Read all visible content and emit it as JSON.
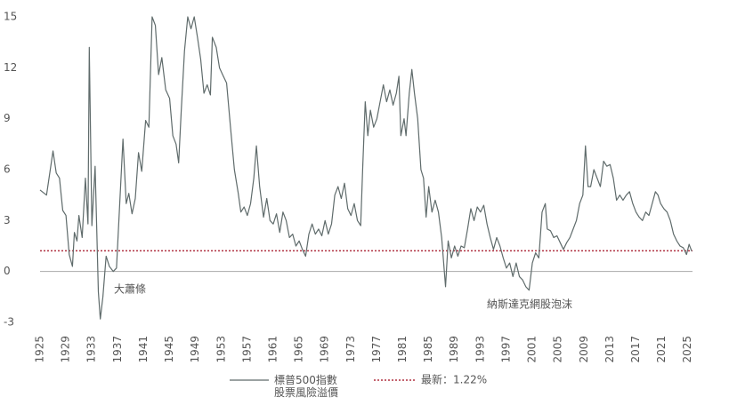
{
  "chart_data": {
    "type": "line",
    "x": [
      1925,
      1926,
      1927,
      1927.5,
      1928,
      1928.5,
      1929,
      1929.5,
      1930,
      1930.3,
      1930.7,
      1931,
      1931.5,
      1932,
      1932.4,
      1932.6,
      1933,
      1933.5,
      1934,
      1934.3,
      1934.7,
      1935.2,
      1935.7,
      1936.3,
      1936.8,
      1937.3,
      1937.8,
      1938.3,
      1938.7,
      1939.2,
      1939.7,
      1940.2,
      1940.7,
      1941.3,
      1941.8,
      1942.3,
      1942.8,
      1943.3,
      1943.8,
      1944.4,
      1945,
      1945.5,
      1946,
      1946.4,
      1946.8,
      1947.3,
      1947.8,
      1948.3,
      1948.8,
      1949.3,
      1949.8,
      1950.3,
      1950.8,
      1951.3,
      1951.6,
      1952.2,
      1952.7,
      1953.3,
      1953.8,
      1954.4,
      1955,
      1955.6,
      1956,
      1956.5,
      1957,
      1957.5,
      1958,
      1958.4,
      1958.9,
      1959.5,
      1960,
      1960.5,
      1961,
      1961.5,
      1962,
      1962.5,
      1963,
      1963.5,
      1964,
      1964.5,
      1965,
      1965.5,
      1966,
      1966.5,
      1967,
      1967.5,
      1968,
      1968.5,
      1969,
      1969.5,
      1970,
      1970.5,
      1971,
      1971.5,
      1972,
      1972.5,
      1973,
      1973.5,
      1974,
      1974.5,
      1974.8,
      1975.2,
      1975.6,
      1976,
      1976.5,
      1977,
      1977.5,
      1978,
      1978.5,
      1979,
      1979.5,
      1980,
      1980.4,
      1980.7,
      1981.2,
      1981.5,
      1982,
      1982.4,
      1982.8,
      1983.3,
      1983.8,
      1984.2,
      1984.6,
      1985,
      1985.5,
      1986,
      1986.5,
      1987,
      1987.6,
      1988,
      1988.5,
      1989,
      1989.5,
      1990,
      1990.5,
      1991,
      1991.5,
      1992,
      1992.5,
      1993,
      1993.5,
      1994,
      1994.5,
      1995,
      1995.5,
      1996,
      1996.5,
      1997,
      1997.5,
      1998,
      1998.5,
      1999,
      1999.5,
      2000,
      2000.5,
      2001,
      2001.5,
      2002,
      2002.5,
      2003,
      2003.3,
      2003.8,
      2004.3,
      2004.8,
      2005.3,
      2005.8,
      2006.3,
      2006.8,
      2007.3,
      2007.8,
      2008.3,
      2008.8,
      2009.2,
      2009.6,
      2010,
      2010.5,
      2011,
      2011.5,
      2012,
      2012.5,
      2013,
      2013.5,
      2014,
      2014.5,
      2015,
      2015.5,
      2016,
      2016.5,
      2017,
      2017.5,
      2018,
      2018.5,
      2019,
      2019.5,
      2020,
      2020.4,
      2020.8,
      2021.3,
      2021.8,
      2022.3,
      2022.8,
      2023.3,
      2023.8,
      2024.3,
      2024.8,
      2025.2,
      2025.6
    ],
    "series": [
      {
        "name": "標普500指數\n股票風險溢價",
        "color": "#5f6b6b",
        "values": [
          4.8,
          4.5,
          7.1,
          5.8,
          5.5,
          3.6,
          3.3,
          1.0,
          0.3,
          2.3,
          1.8,
          3.3,
          2.0,
          5.5,
          2.8,
          13.2,
          2.7,
          6.2,
          -1.2,
          -2.8,
          -1.5,
          0.9,
          0.3,
          0.0,
          0.2,
          4.0,
          7.8,
          4.0,
          4.6,
          3.4,
          4.3,
          7.0,
          5.9,
          8.9,
          8.5,
          15.0,
          14.5,
          11.6,
          12.6,
          10.7,
          10.2,
          8.0,
          7.5,
          6.4,
          9.5,
          13.0,
          15.0,
          14.3,
          15.0,
          13.8,
          12.5,
          10.5,
          11.0,
          10.4,
          13.8,
          13.2,
          12.0,
          11.5,
          11.1,
          8.5,
          6.0,
          4.6,
          3.5,
          3.8,
          3.3,
          4.0,
          5.5,
          7.4,
          5.0,
          3.2,
          4.3,
          3.0,
          2.8,
          3.4,
          2.3,
          3.5,
          3.0,
          2.0,
          2.2,
          1.5,
          1.8,
          1.3,
          0.9,
          2.2,
          2.8,
          2.2,
          2.5,
          2.1,
          3.0,
          2.2,
          2.8,
          4.5,
          5.0,
          4.3,
          5.2,
          3.7,
          3.3,
          4.0,
          3.0,
          2.7,
          6.0,
          10.0,
          8.0,
          9.5,
          8.5,
          9.0,
          10.0,
          11.0,
          10.0,
          10.7,
          9.8,
          10.5,
          11.5,
          8.0,
          9.0,
          8.0,
          10.5,
          11.9,
          10.5,
          9.0,
          6.0,
          5.5,
          3.2,
          5.0,
          3.5,
          4.2,
          3.5,
          2.0,
          -0.9,
          1.8,
          0.8,
          1.5,
          0.9,
          1.5,
          1.4,
          2.5,
          3.7,
          3.0,
          3.8,
          3.5,
          3.9,
          2.8,
          2.0,
          1.3,
          2.0,
          1.5,
          0.8,
          0.2,
          0.5,
          -0.3,
          0.5,
          -0.3,
          -0.5,
          -0.9,
          -1.1,
          0.5,
          1.1,
          0.8,
          3.5,
          4.0,
          2.5,
          2.4,
          2.0,
          2.1,
          1.7,
          1.3,
          1.7,
          2.0,
          2.5,
          3.0,
          4.0,
          4.5,
          7.4,
          5.0,
          5.0,
          6.0,
          5.5,
          5.0,
          6.5,
          6.2,
          6.3,
          5.5,
          4.2,
          4.5,
          4.2,
          4.5,
          4.7,
          4.0,
          3.5,
          3.2,
          3.0,
          3.5,
          3.3,
          4.0,
          4.7,
          4.5,
          4.0,
          3.7,
          3.5,
          3.0,
          2.2,
          1.8,
          1.5,
          1.4,
          1.0,
          1.6,
          1.2
        ]
      }
    ],
    "reference_line": {
      "value": 1.22,
      "label": "最新：1.22%",
      "color": "#b03040"
    },
    "annotations": [
      "大蕭條",
      "納斯達克網股泡沫"
    ],
    "xlim": [
      1925,
      2026
    ],
    "xticks": [
      1925,
      1929,
      1933,
      1937,
      1941,
      1945,
      1949,
      1953,
      1957,
      1961,
      1965,
      1969,
      1973,
      1977,
      1981,
      1985,
      1989,
      1993,
      1997,
      2001,
      2005,
      2009,
      2013,
      2017,
      2021,
      2025
    ],
    "ylim": [
      -3,
      15
    ],
    "yticks": [
      -3,
      0,
      3,
      6,
      9,
      12,
      15
    ]
  }
}
